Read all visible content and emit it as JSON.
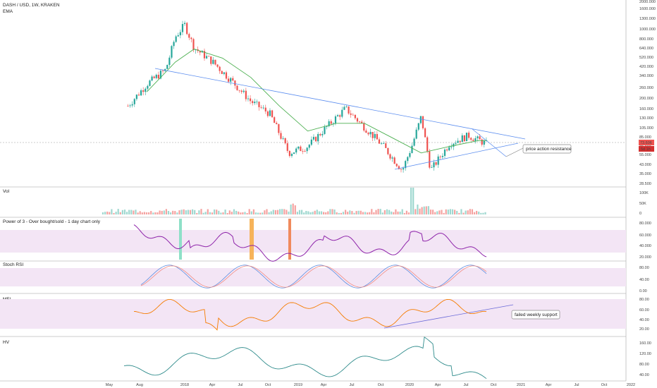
{
  "header": {
    "symbol": "DASH / USD, 1W, KRAKEN",
    "indicator": "EMA",
    "last_price": "73.606",
    "countdown": "5d 1h"
  },
  "panes": {
    "vol": "Vol",
    "power": "Power of 3 - Over bought/sold - 1 day chart only",
    "stoch": "Stoch RSI",
    "mfi": "MFI",
    "hv": "HV"
  },
  "annotations": {
    "resistance": "price action resistance",
    "support": "failed weekly support"
  },
  "x_axis": [
    "May",
    "Aug",
    "2018",
    "Apr",
    "Jul",
    "Oct",
    "2019",
    "Apr",
    "Jul",
    "Oct",
    "2020",
    "Apr",
    "Jul",
    "Oct",
    "2021",
    "Apr",
    "Jul",
    "Oct",
    "2022"
  ],
  "price_axis": [
    "2000.000",
    "1600.000",
    "1300.000",
    "1000.000",
    "800.000",
    "640.000",
    "520.000",
    "420.000",
    "340.000",
    "260.000",
    "200.000",
    "160.000",
    "130.000",
    "105.000",
    "85.000",
    "65.000",
    "55.000",
    "43.000",
    "35.000",
    "28.500"
  ],
  "vol_axis": [
    "100K",
    "50K",
    "0"
  ],
  "power_axis": [
    "80.000",
    "60.000",
    "40.000",
    "20.000"
  ],
  "stoch_axis": [
    "80.00",
    "40.00",
    "0.00"
  ],
  "mfi_axis": [
    "80.00",
    "60.00",
    "40.00",
    "20.00"
  ],
  "hv_axis": [
    "160.00",
    "120.00",
    "80.00",
    "40.00"
  ],
  "colors": {
    "up": "#26a69a",
    "down": "#ef5350",
    "ema": "#4caf50",
    "trend": "#5b8def",
    "purple": "#8e24aa",
    "mfi": "#f57c00",
    "hv": "#2e8b8b",
    "band": "#f3e5f5"
  },
  "chart_data": {
    "type": "line",
    "title": "DASH / USD, 1W, KRAKEN",
    "price_scale": "log",
    "ylim": [
      28.5,
      2000
    ],
    "series": [
      {
        "name": "DASH / USD",
        "x": [
          "2017-07",
          "2017-09",
          "2017-11",
          "2017-12",
          "2018-01",
          "2018-02",
          "2018-04",
          "2018-06",
          "2018-08",
          "2018-10",
          "2018-12",
          "2019-02",
          "2019-04",
          "2019-06",
          "2019-08",
          "2019-10",
          "2019-12",
          "2020-01",
          "2020-02",
          "2020-03",
          "2020-05",
          "2020-07",
          "2020-09"
        ],
        "values": [
          180,
          300,
          420,
          900,
          1200,
          700,
          500,
          320,
          200,
          150,
          60,
          70,
          110,
          170,
          110,
          70,
          40,
          70,
          140,
          40,
          75,
          90,
          73.606
        ]
      },
      {
        "name": "EMA",
        "x": [
          "2017-09",
          "2017-12",
          "2018-02",
          "2018-05",
          "2018-08",
          "2018-11",
          "2019-02",
          "2019-05",
          "2019-08",
          "2019-11",
          "2020-02",
          "2020-05",
          "2020-08",
          "2020-09"
        ],
        "values": [
          250,
          500,
          680,
          550,
          350,
          180,
          100,
          120,
          120,
          85,
          60,
          70,
          80,
          80
        ]
      }
    ]
  }
}
